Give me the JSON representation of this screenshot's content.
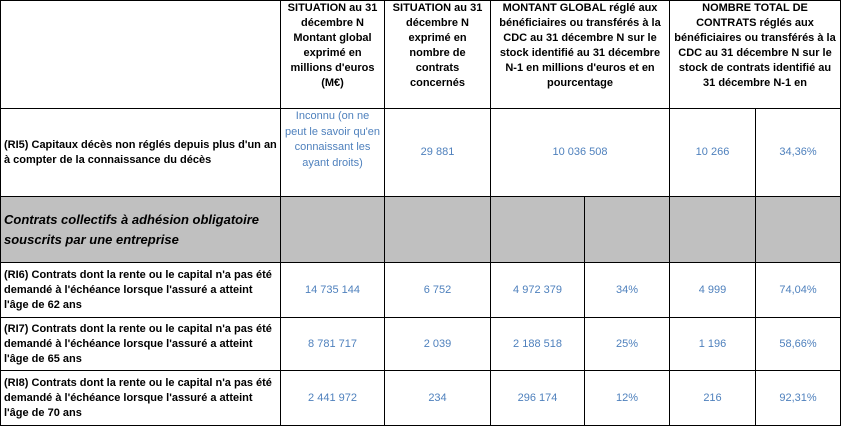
{
  "headers": {
    "h1": "SITUATION au 31 décembre N Montant global exprimé en millions d'euros (M€)",
    "h2": "SITUATION au 31 décembre N exprimé en nombre de contrats concernés",
    "h3": "MONTANT GLOBAL réglé aux bénéficiaires ou transférés à la CDC au 31 décembre N sur le stock identifié au 31 décembre N-1 en millions d'euros et en pourcentage",
    "h4": "NOMBRE TOTAL DE CONTRATS réglés aux bénéficiaires ou transférés à la CDC au 31 décembre N sur le stock de contrats identifié au 31 décembre N-1 en"
  },
  "ri5": {
    "label": "(RI5) Capitaux décès non réglés depuis plus d'un an à compter de la connaissance du décès",
    "montant": "Inconnu (on ne peut le savoir qu'en connaissant les ayant droits)",
    "nombre": "29 881",
    "regle": "10 036 508",
    "contrats": "10 266",
    "contrats_pct": "34,36%"
  },
  "section": {
    "label": "Contrats collectifs à adhésion obligatoire souscrits par une entreprise"
  },
  "rows": [
    {
      "label": "(RI6) Contrats dont la rente ou le capital n'a pas été demandé à l'échéance lorsque l'assuré a atteint l'âge de 62 ans",
      "montant": "14 735 144",
      "nombre": "6 752",
      "regle": "4 972 379",
      "regle_pct": "34%",
      "contrats": "4 999",
      "contrats_pct": "74,04%"
    },
    {
      "label": "(RI7) Contrats dont la rente ou le capital n'a pas été demandé à l'échéance lorsque l'assuré a atteint l'âge de 65 ans",
      "montant": "8 781 717",
      "nombre": "2 039",
      "regle": "2 188 518",
      "regle_pct": "25%",
      "contrats": "1 196",
      "contrats_pct": "58,66%"
    },
    {
      "label": "(RI8) Contrats dont la rente ou le capital n'a pas été demandé à l'échéance lorsque l'assuré a atteint l'âge de 70 ans",
      "montant": "2 441 972",
      "nombre": "234",
      "regle": "296 174",
      "regle_pct": "12%",
      "contrats": "216",
      "contrats_pct": "92,31%"
    }
  ]
}
